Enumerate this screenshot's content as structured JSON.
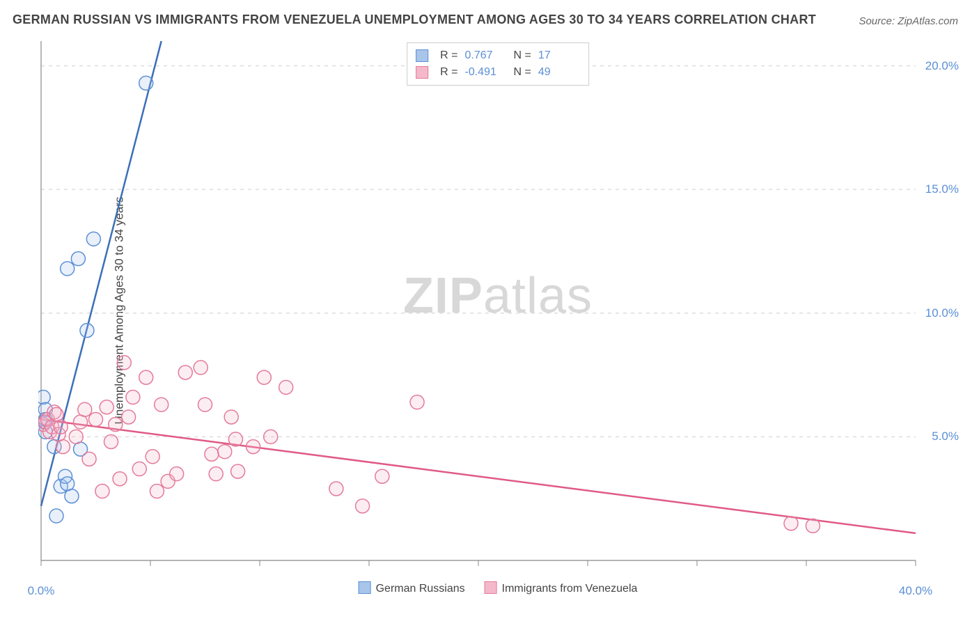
{
  "title": "GERMAN RUSSIAN VS IMMIGRANTS FROM VENEZUELA UNEMPLOYMENT AMONG AGES 30 TO 34 YEARS CORRELATION CHART",
  "source": "Source: ZipAtlas.com",
  "ylabel": "Unemployment Among Ages 30 to 34 years",
  "watermark_zip": "ZIP",
  "watermark_atlas": "atlas",
  "chart": {
    "type": "scatter",
    "xlim": [
      0,
      40
    ],
    "ylim": [
      0,
      21
    ],
    "x_ticks": [
      0,
      5,
      10,
      15,
      20,
      25,
      30,
      35,
      40
    ],
    "x_tick_labels": [
      "0.0%",
      "",
      "",
      "",
      "",
      "",
      "",
      "",
      "40.0%"
    ],
    "y_ticks": [
      5,
      10,
      15,
      20
    ],
    "y_tick_labels": [
      "5.0%",
      "10.0%",
      "15.0%",
      "20.0%"
    ],
    "background_color": "#ffffff",
    "grid_color": "#dddddd",
    "axis_color": "#888888",
    "marker_radius": 10,
    "marker_stroke_width": 1.5,
    "marker_fill_opacity": 0.25,
    "line_width": 2.5,
    "series": [
      {
        "name": "German Russians",
        "color_stroke": "#5b8fd6",
        "color_fill": "#a9c5ea",
        "line_color": "#3b6fb8",
        "R": "0.767",
        "N": "17",
        "trend": {
          "x1": 0,
          "y1": 2.2,
          "x2": 5.5,
          "y2": 21
        },
        "points": [
          [
            0.1,
            6.6
          ],
          [
            0.15,
            5.6
          ],
          [
            0.2,
            5.2
          ],
          [
            0.2,
            6.1
          ],
          [
            0.6,
            4.6
          ],
          [
            0.7,
            1.8
          ],
          [
            0.9,
            3.0
          ],
          [
            1.1,
            3.4
          ],
          [
            1.2,
            3.1
          ],
          [
            1.4,
            2.6
          ],
          [
            1.2,
            11.8
          ],
          [
            1.7,
            12.2
          ],
          [
            2.1,
            9.3
          ],
          [
            2.4,
            13.0
          ],
          [
            1.8,
            4.5
          ],
          [
            0.2,
            5.7
          ],
          [
            4.8,
            19.3
          ]
        ]
      },
      {
        "name": "Immigrants from Venezuela",
        "color_stroke": "#e47a9a",
        "color_fill": "#f3b9ca",
        "line_color": "#e05a85",
        "R": "-0.491",
        "N": "49",
        "trend": {
          "x1": 0,
          "y1": 5.7,
          "x2": 40,
          "y2": 1.1
        },
        "points": [
          [
            0.1,
            5.5
          ],
          [
            0.2,
            5.6
          ],
          [
            0.3,
            5.7
          ],
          [
            0.4,
            5.2
          ],
          [
            0.5,
            5.4
          ],
          [
            0.6,
            6.0
          ],
          [
            0.7,
            5.9
          ],
          [
            0.8,
            5.1
          ],
          [
            0.9,
            5.4
          ],
          [
            1.0,
            4.6
          ],
          [
            1.6,
            5.0
          ],
          [
            1.8,
            5.6
          ],
          [
            2.0,
            6.1
          ],
          [
            2.2,
            4.1
          ],
          [
            2.5,
            5.7
          ],
          [
            2.8,
            2.8
          ],
          [
            3.0,
            6.2
          ],
          [
            3.2,
            4.8
          ],
          [
            3.4,
            5.5
          ],
          [
            3.6,
            3.3
          ],
          [
            3.8,
            8.0
          ],
          [
            4.0,
            5.8
          ],
          [
            4.2,
            6.6
          ],
          [
            4.5,
            3.7
          ],
          [
            4.8,
            7.4
          ],
          [
            5.1,
            4.2
          ],
          [
            5.3,
            2.8
          ],
          [
            5.5,
            6.3
          ],
          [
            5.8,
            3.2
          ],
          [
            6.2,
            3.5
          ],
          [
            6.6,
            7.6
          ],
          [
            7.3,
            7.8
          ],
          [
            7.5,
            6.3
          ],
          [
            7.8,
            4.3
          ],
          [
            8.0,
            3.5
          ],
          [
            8.4,
            4.4
          ],
          [
            8.7,
            5.8
          ],
          [
            9.0,
            3.6
          ],
          [
            9.7,
            4.6
          ],
          [
            10.2,
            7.4
          ],
          [
            10.5,
            5.0
          ],
          [
            11.2,
            7.0
          ],
          [
            13.5,
            2.9
          ],
          [
            14.7,
            2.2
          ],
          [
            15.6,
            3.4
          ],
          [
            17.2,
            6.4
          ],
          [
            34.3,
            1.5
          ],
          [
            35.3,
            1.4
          ],
          [
            8.9,
            4.9
          ]
        ]
      }
    ]
  },
  "legend_bottom": [
    {
      "label": "German Russians",
      "fill": "#a9c5ea",
      "stroke": "#5b8fd6"
    },
    {
      "label": "Immigrants from Venezuela",
      "fill": "#f3b9ca",
      "stroke": "#e47a9a"
    }
  ]
}
